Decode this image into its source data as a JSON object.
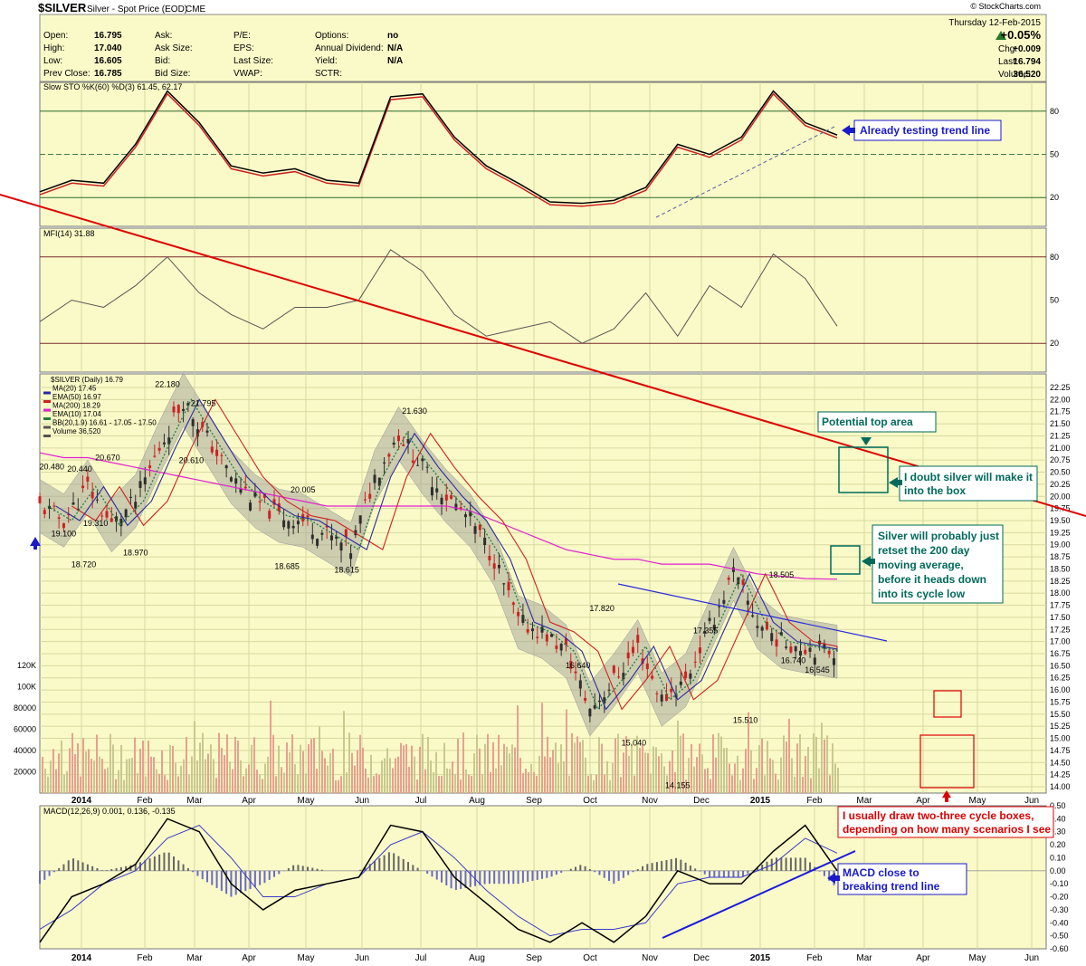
{
  "header": {
    "symbol": "$SILVER",
    "subtitle": "Silver - Spot Price (EOD)",
    "exchange": "CME",
    "copyright": "© StockCharts.com",
    "date": "Thursday 12-Feb-2015",
    "quote_labels": [
      "Open:",
      "High:",
      "Low:",
      "Prev Close:"
    ],
    "quote_values": [
      "16.795",
      "17.040",
      "16.605",
      "16.785"
    ],
    "col2_labels": [
      "Ask:",
      "Ask Size:",
      "Bid:",
      "Bid Size:"
    ],
    "col3_labels": [
      "P/E:",
      "EPS:",
      "Last Size:",
      "VWAP:"
    ],
    "col4_labels": [
      "Options:",
      "Annual Dividend:",
      "Yield:",
      "SCTR:"
    ],
    "col4_values": [
      "no",
      "N/A",
      "N/A",
      ""
    ],
    "change_pct": "+0.05%",
    "right_labels": [
      "Chg:",
      "Last:",
      "Volume:"
    ],
    "right_values": [
      "+0.009",
      "16.794",
      "36,520"
    ]
  },
  "colors": {
    "panel_bg": "#fafac8",
    "grid": "#d8d8a0",
    "up_candle": "#2e2e2e",
    "down_candle": "#cc2222",
    "ma20": "#2a2aa0",
    "ema50": "#d02020",
    "ma200": "#e020d0",
    "ema10": "#208040",
    "bollinger_band": "#a8a89a",
    "volume": "#c8c890",
    "volume_down": "#e8a090",
    "trendline_red": "#e00000",
    "annotation_blue": "#1a1acc",
    "annotation_green": "#006a5a",
    "annotation_red": "#dd0000"
  },
  "chart_data": [
    {
      "type": "line",
      "panel": "slow-stochastic",
      "legend": "Slow STO %K(60) %D(3) 61.45, 62.17",
      "ylim": [
        0,
        100
      ],
      "y_ticks": [
        20,
        50,
        80
      ],
      "k_last": 61.45,
      "d_last": 62.17,
      "x_pct_of_period": [
        0,
        4,
        8,
        12,
        16,
        20,
        24,
        28,
        32,
        36,
        40,
        44,
        48,
        52,
        56,
        60,
        64,
        68,
        72,
        76,
        80,
        84,
        88,
        92,
        96,
        100
      ],
      "values": [
        22,
        30,
        28,
        55,
        92,
        70,
        40,
        35,
        38,
        30,
        28,
        88,
        90,
        60,
        40,
        28,
        15,
        14,
        16,
        25,
        55,
        48,
        60,
        92,
        70,
        61.45
      ],
      "annotation": "Already testing trend line"
    },
    {
      "type": "line",
      "panel": "money-flow-index",
      "legend": "MFI(14) 31.88",
      "ylim": [
        0,
        100
      ],
      "y_ticks": [
        20,
        50,
        80
      ],
      "last": 31.88,
      "x_pct_of_period": [
        0,
        4,
        8,
        12,
        16,
        20,
        24,
        28,
        32,
        36,
        40,
        44,
        48,
        52,
        56,
        60,
        64,
        68,
        72,
        76,
        80,
        84,
        88,
        92,
        96,
        100
      ],
      "values": [
        35,
        50,
        45,
        60,
        80,
        55,
        40,
        30,
        45,
        45,
        50,
        85,
        70,
        40,
        25,
        30,
        35,
        20,
        30,
        55,
        25,
        60,
        45,
        82,
        65,
        31.88
      ]
    },
    {
      "type": "candlestick",
      "panel": "price",
      "legend": [
        "$SILVER (Daily) 16.79",
        "MA(20) 17.45",
        "EMA(50) 16.97",
        "MA(200) 18.29",
        "EMA(10) 17.04",
        "BB(20,1.9) 16.61 - 17.05 - 17.50",
        "Volume 36,520"
      ],
      "ylim": [
        14.0,
        22.25
      ],
      "y_ticks": [
        14.0,
        14.25,
        14.5,
        14.75,
        15.0,
        15.25,
        15.5,
        15.75,
        16.0,
        16.25,
        16.5,
        16.75,
        17.0,
        17.25,
        17.5,
        17.75,
        18.0,
        18.25,
        18.5,
        18.75,
        19.0,
        19.25,
        19.5,
        19.75,
        20.0,
        20.25,
        20.5,
        20.75,
        21.0,
        21.25,
        21.5,
        21.75,
        22.0,
        22.25
      ],
      "x_labels": [
        "2014",
        "Feb",
        "Mar",
        "Apr",
        "May",
        "Jun",
        "Jul",
        "Aug",
        "Sep",
        "Oct",
        "Nov",
        "Dec",
        "2015",
        "Feb",
        "Mar",
        "Apr",
        "May",
        "Jun"
      ],
      "x_pct_of_period": [
        0,
        3,
        6,
        9,
        12,
        15,
        18,
        21,
        24,
        27,
        30,
        33,
        36,
        39,
        42,
        45,
        48,
        51,
        54,
        57,
        60,
        63,
        66,
        69,
        72,
        75,
        78,
        81,
        84,
        87,
        90,
        93,
        96,
        100
      ],
      "close": [
        19.8,
        19.5,
        20.2,
        19.4,
        19.9,
        21.0,
        22.0,
        21.2,
        20.4,
        19.9,
        19.6,
        19.5,
        19.2,
        18.9,
        20.4,
        21.3,
        20.6,
        20.0,
        19.5,
        18.7,
        17.4,
        17.2,
        16.8,
        15.6,
        16.2,
        16.9,
        15.8,
        16.2,
        17.3,
        18.4,
        17.4,
        17.0,
        16.9,
        16.79
      ],
      "ma200": [
        20.9,
        20.8,
        20.8,
        20.7,
        20.6,
        20.5,
        20.4,
        20.3,
        20.2,
        20.1,
        20.0,
        19.9,
        19.8,
        19.8,
        19.8,
        19.8,
        19.8,
        19.8,
        19.7,
        19.5,
        19.3,
        19.1,
        18.9,
        18.8,
        18.7,
        18.7,
        18.6,
        18.6,
        18.6,
        18.5,
        18.4,
        18.35,
        18.3,
        18.29
      ],
      "price_labels": [
        {
          "text": "20.480",
          "x_pct": 1.5,
          "value": 20.48
        },
        {
          "text": "19.100",
          "x_pct": 3.0,
          "value": 19.1
        },
        {
          "text": "20.440",
          "x_pct": 5.0,
          "value": 20.44
        },
        {
          "text": "18.720",
          "x_pct": 5.5,
          "value": 18.72
        },
        {
          "text": "19.310",
          "x_pct": 7.0,
          "value": 19.31
        },
        {
          "text": "20.670",
          "x_pct": 8.5,
          "value": 20.67
        },
        {
          "text": "18.970",
          "x_pct": 12.0,
          "value": 18.97
        },
        {
          "text": "22.180",
          "x_pct": 16.0,
          "value": 22.18
        },
        {
          "text": "21.795",
          "x_pct": 20.5,
          "value": 21.795
        },
        {
          "text": "20.610",
          "x_pct": 19.0,
          "value": 20.61
        },
        {
          "text": "20.005",
          "x_pct": 33.0,
          "value": 20.005
        },
        {
          "text": "18.685",
          "x_pct": 31.0,
          "value": 18.685
        },
        {
          "text": "18.615",
          "x_pct": 38.5,
          "value": 18.615
        },
        {
          "text": "21.630",
          "x_pct": 47.0,
          "value": 21.63
        },
        {
          "text": "17.820",
          "x_pct": 70.5,
          "value": 17.82
        },
        {
          "text": "16.640",
          "x_pct": 67.5,
          "value": 16.64
        },
        {
          "text": "17.355",
          "x_pct": 83.5,
          "value": 17.355
        },
        {
          "text": "15.040",
          "x_pct": 74.5,
          "value": 15.04
        },
        {
          "text": "14.155",
          "x_pct": 80.0,
          "value": 14.155
        },
        {
          "text": "15.510",
          "x_pct": 88.5,
          "value": 15.51
        },
        {
          "text": "18.505",
          "x_pct": 93.0,
          "value": 18.505
        },
        {
          "text": "16.740",
          "x_pct": 94.5,
          "value": 16.74
        },
        {
          "text": "16.545",
          "x_pct": 97.5,
          "value": 16.545
        }
      ],
      "annotations": [
        "Potential top area",
        "I doubt silver will make it into the box",
        "Silver will probably just retset the 200 day moving average, before it heads down into its cycle low",
        "I usually draw two-three cycle boxes, depending on how many scenarios I see"
      ]
    },
    {
      "type": "bar",
      "panel": "volume",
      "ylim": [
        0,
        120000
      ],
      "y_ticks": [
        20000,
        40000,
        60000,
        80000,
        "100K",
        "120K"
      ],
      "last": 36520
    },
    {
      "type": "line",
      "panel": "macd",
      "legend": "MACD(12,26,9) 0.001, 0.136, -0.135",
      "ylim": [
        -0.6,
        0.5
      ],
      "y_ticks": [
        -0.6,
        -0.5,
        -0.4,
        -0.3,
        -0.2,
        -0.1,
        0.0,
        0.1,
        0.2,
        0.3,
        0.4,
        0.5
      ],
      "macd_last": 0.001,
      "signal_last": 0.136,
      "histogram_last": -0.135,
      "x_pct_of_period": [
        0,
        4,
        8,
        12,
        16,
        20,
        24,
        28,
        32,
        36,
        40,
        44,
        48,
        52,
        56,
        60,
        64,
        68,
        72,
        76,
        80,
        84,
        88,
        92,
        96,
        100
      ],
      "macd": [
        -0.55,
        -0.2,
        -0.1,
        0.05,
        0.4,
        0.3,
        -0.1,
        -0.3,
        -0.15,
        -0.1,
        -0.05,
        0.35,
        0.3,
        -0.05,
        -0.25,
        -0.45,
        -0.55,
        -0.4,
        -0.55,
        -0.35,
        0.0,
        -0.1,
        -0.1,
        0.15,
        0.35,
        0.001
      ],
      "signal": [
        -0.45,
        -0.3,
        -0.1,
        0.0,
        0.25,
        0.35,
        0.1,
        -0.2,
        -0.2,
        -0.1,
        -0.05,
        0.2,
        0.3,
        0.1,
        -0.15,
        -0.35,
        -0.5,
        -0.45,
        -0.45,
        -0.4,
        -0.1,
        -0.05,
        -0.05,
        0.05,
        0.25,
        0.136
      ],
      "annotation": "MACD close to breaking trend line"
    }
  ]
}
